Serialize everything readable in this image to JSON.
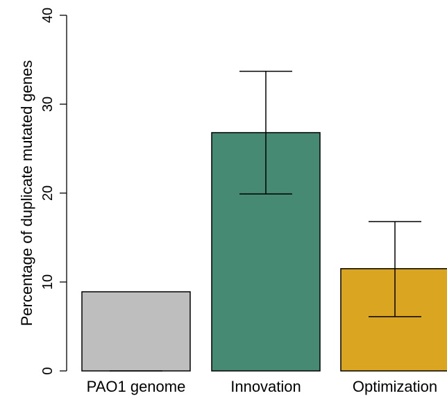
{
  "chart_data": {
    "type": "bar",
    "title": "",
    "xlabel": "",
    "ylabel": "Percentage of duplicate mutated genes",
    "ylim": [
      0,
      40
    ],
    "yticks": [
      "0",
      "10",
      "20",
      "30",
      "40"
    ],
    "categories": [
      "PAO1 genome",
      "Innovation",
      "Optimization"
    ],
    "values": [
      8.9,
      26.8,
      11.5
    ],
    "error_low": [
      null,
      19.9,
      6.1
    ],
    "error_high": [
      null,
      33.7,
      16.8
    ],
    "colors": [
      "#BEBEBE",
      "#468A73",
      "#DAA520"
    ],
    "grid": false,
    "legend": "none"
  }
}
